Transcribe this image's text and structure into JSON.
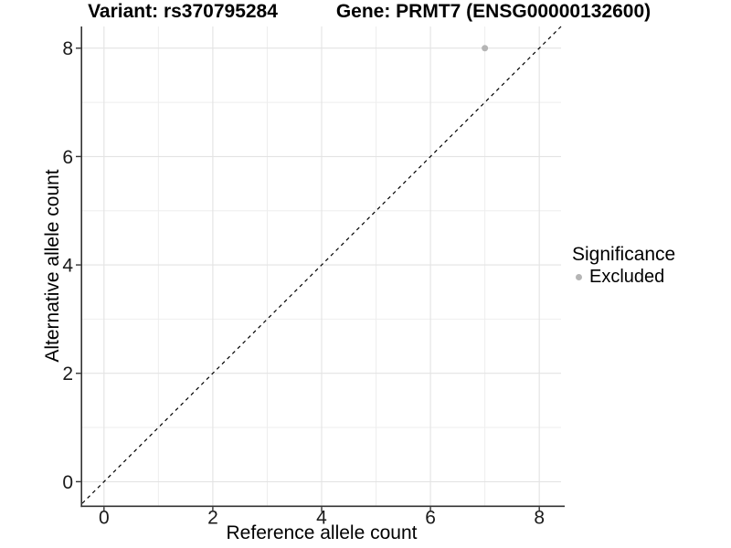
{
  "header": {
    "variant_title": "Variant: rs370795284",
    "gene_title": "Gene: PRMT7 (ENSG00000132600)"
  },
  "legend": {
    "title": "Significance",
    "position": "right",
    "items": [
      {
        "label": "Excluded",
        "color": "#b5b5b5"
      }
    ]
  },
  "colors": {
    "background": "#ffffff",
    "grid_major": "#e3e3e3",
    "grid_minor": "#eeeeee",
    "axis_line": "#333333",
    "tick_label": "#1a1a1a",
    "identity_line": "#000000",
    "point_excluded": "#b5b5b5"
  },
  "chart_data": {
    "type": "scatter",
    "title": "Variant: rs370795284 — Gene: PRMT7 (ENSG00000132600)",
    "xlabel": "Reference allele count",
    "ylabel": "Alternative allele count",
    "xlim": [
      -0.4,
      8.4
    ],
    "ylim": [
      -0.44,
      8.4
    ],
    "x_ticks": [
      0,
      2,
      4,
      6,
      8
    ],
    "y_ticks": [
      0,
      2,
      4,
      6,
      8
    ],
    "x_minor_ticks": [
      1,
      3,
      5,
      7
    ],
    "y_minor_ticks": [
      1,
      3,
      5,
      7
    ],
    "grid": true,
    "legend_position": "right",
    "series": [
      {
        "name": "Excluded",
        "color": "#b5b5b5",
        "points": [
          {
            "x": 7,
            "y": 8
          }
        ]
      }
    ],
    "reference_line": {
      "kind": "identity",
      "equation": "y = x",
      "style": "dashed",
      "color": "#000000"
    }
  }
}
